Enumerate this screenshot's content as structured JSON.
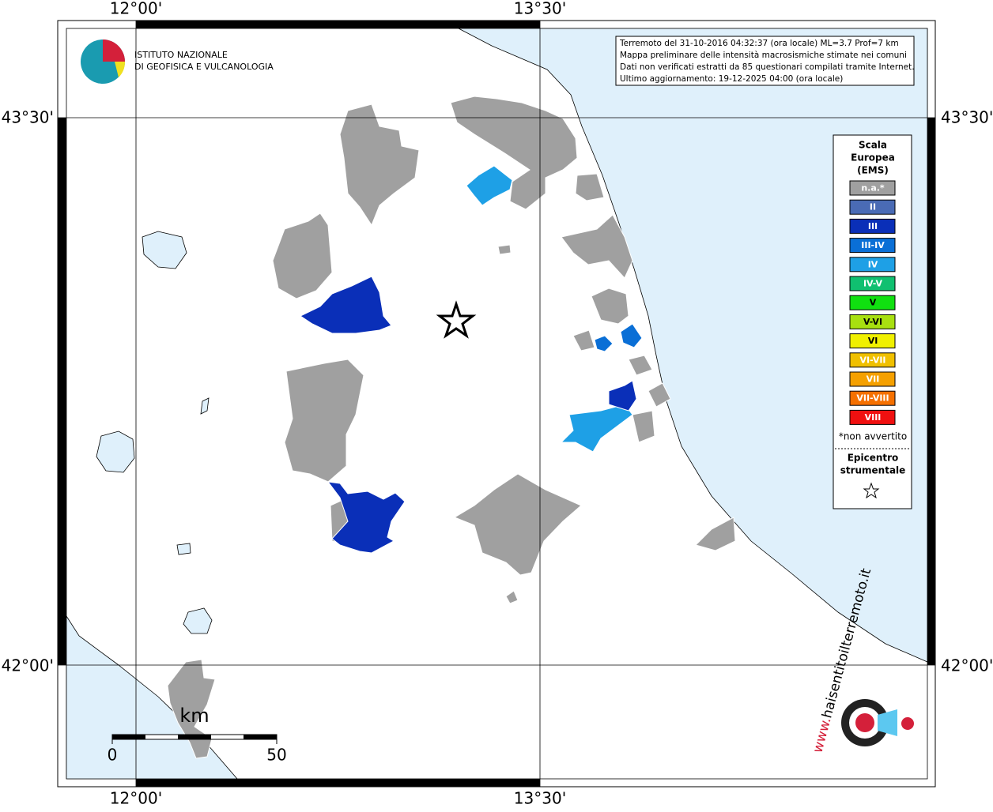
{
  "map": {
    "grid_labels": {
      "top": [
        "12°00'",
        "13°30'"
      ],
      "bottom": [
        "12°00'",
        "13°30'"
      ],
      "left": [
        "43°30'",
        "42°00'"
      ],
      "right": [
        "43°30'",
        "42°00'"
      ]
    },
    "info": [
      "Terremoto del 31-10-2016 04:32:37 (ora locale) ML=3.7 Prof=7 km",
      "Mappa preliminare delle intensità macrosismiche stimate nei comuni",
      "Dati non verificati estratti da 85 questionari compilati tramite Internet.",
      "Ultimo aggiornamento: 19-12-2025 04:00 (ora locale)"
    ],
    "institute": [
      "ISTITUTO NAZIONALE",
      "DI GEOFISICA E VULCANOLOGIA"
    ],
    "legend": {
      "title": [
        "Scala",
        "Europea",
        "(EMS)"
      ],
      "items": [
        {
          "label": "n.a.*",
          "color": "#a0a0a0"
        },
        {
          "label": "II",
          "color": "#4a6bb5"
        },
        {
          "label": "III",
          "color": "#0a2fb8"
        },
        {
          "label": "III-IV",
          "color": "#0a6fd6"
        },
        {
          "label": "IV",
          "color": "#1ea0e6"
        },
        {
          "label": "IV-V",
          "color": "#10c070"
        },
        {
          "label": "V",
          "color": "#10e010"
        },
        {
          "label": "V-VI",
          "color": "#a8e010"
        },
        {
          "label": "VI",
          "color": "#f0f000"
        },
        {
          "label": "VI-VII",
          "color": "#f0c000"
        },
        {
          "label": "VII",
          "color": "#f5a000"
        },
        {
          "label": "VII-VIII",
          "color": "#f57000"
        },
        {
          "label": "VIII",
          "color": "#f01010"
        }
      ],
      "note": "*non avvertito",
      "epicenter": [
        "Epicentro",
        "strumentale"
      ]
    },
    "scale": {
      "unit": "km",
      "ticks": [
        "0",
        "50"
      ]
    },
    "website": [
      "www.",
      "haisentitoilterremoto.it"
    ]
  }
}
